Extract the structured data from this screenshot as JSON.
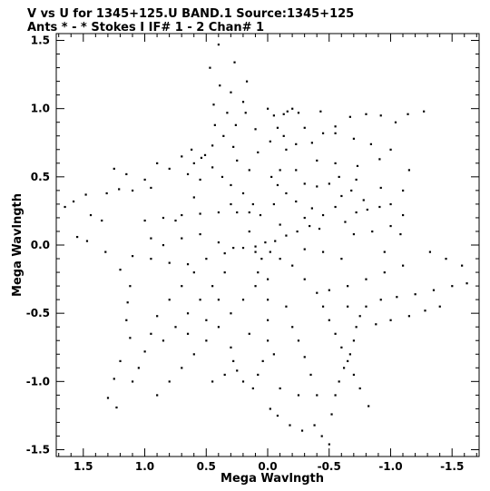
{
  "chart_data": {
    "type": "scatter",
    "title_line1": "V vs U for 1345+125.U BAND.1   Source:1345+125",
    "title_line2": "Ants * - *     Stokes I  IF# 1 - 2  Chan# 1",
    "xlabel": "Mega Wavlngth",
    "ylabel": "Mega Wavlngth",
    "xlim": [
      1.72,
      -1.72
    ],
    "ylim": [
      -1.55,
      1.55
    ],
    "x_ticks": [
      {
        "value": 1.5,
        "label": "1.5"
      },
      {
        "value": 1.0,
        "label": "1.0"
      },
      {
        "value": 0.5,
        "label": "0.5"
      },
      {
        "value": 0.0,
        "label": "0.0"
      },
      {
        "value": -0.5,
        "label": "-0.5"
      },
      {
        "value": -1.0,
        "label": "-1.0"
      },
      {
        "value": -1.5,
        "label": "-1.5"
      }
    ],
    "y_ticks": [
      {
        "value": 1.5,
        "label": "1.5"
      },
      {
        "value": 1.0,
        "label": "1.0"
      },
      {
        "value": 0.5,
        "label": "0.5"
      },
      {
        "value": 0.0,
        "label": "0.0"
      },
      {
        "value": -0.5,
        "label": "-0.5"
      },
      {
        "value": -1.0,
        "label": "-1.0"
      },
      {
        "value": -1.5,
        "label": "-1.5"
      }
    ],
    "grid": false,
    "point_color": "#000000",
    "points": [
      [
        0.4,
        1.47
      ],
      [
        0.27,
        1.34
      ],
      [
        0.47,
        1.3
      ],
      [
        0.39,
        1.17
      ],
      [
        0.17,
        1.2
      ],
      [
        0.3,
        1.12
      ],
      [
        0.2,
        1.05
      ],
      [
        0.44,
        1.03
      ],
      [
        0.33,
        0.97
      ],
      [
        0.18,
        0.97
      ],
      [
        0.43,
        0.88
      ],
      [
        0.26,
        0.88
      ],
      [
        0.36,
        0.8
      ],
      [
        0.45,
        0.73
      ],
      [
        0.62,
        0.7
      ],
      [
        0.28,
        0.72
      ],
      [
        0.51,
        0.66
      ],
      [
        0.54,
        0.64
      ],
      [
        0.45,
        0.57
      ],
      [
        0.37,
        0.5
      ],
      [
        0.3,
        0.44
      ],
      [
        0.2,
        0.38
      ],
      [
        0.12,
        0.3
      ],
      [
        0.06,
        0.22
      ],
      [
        -0.02,
        0.76
      ],
      [
        0.08,
        0.68
      ],
      [
        -0.08,
        0.86
      ],
      [
        -0.13,
        0.96
      ],
      [
        -0.16,
        0.98
      ],
      [
        -0.2,
        1.0
      ],
      [
        -0.25,
        0.97
      ],
      [
        -0.13,
        0.8
      ],
      [
        -0.23,
        0.74
      ],
      [
        -0.15,
        0.7
      ],
      [
        -0.03,
        0.5
      ],
      [
        -0.08,
        0.44
      ],
      [
        -0.15,
        0.38
      ],
      [
        -0.23,
        0.32
      ],
      [
        -0.36,
        0.27
      ],
      [
        -0.45,
        0.22
      ],
      [
        -0.55,
        0.28
      ],
      [
        -0.6,
        0.36
      ],
      [
        -0.68,
        0.4
      ],
      [
        -0.78,
        0.33
      ],
      [
        -0.81,
        0.26
      ],
      [
        -0.72,
        0.24
      ],
      [
        -0.63,
        0.17
      ],
      [
        -0.42,
        0.12
      ],
      [
        -0.34,
        0.14
      ],
      [
        -0.24,
        0.1
      ],
      [
        -0.15,
        0.07
      ],
      [
        -0.06,
        0.03
      ],
      [
        -0.91,
        0.28
      ],
      [
        -1.0,
        0.3
      ],
      [
        -1.1,
        0.22
      ],
      [
        -1.08,
        0.08
      ],
      [
        -1.0,
        0.14
      ],
      [
        -1.15,
        0.55
      ],
      [
        -1.0,
        0.7
      ],
      [
        -0.84,
        0.74
      ],
      [
        -0.7,
        0.78
      ],
      [
        -0.55,
        0.82
      ],
      [
        -0.45,
        0.82
      ],
      [
        -0.36,
        0.75
      ],
      [
        -0.3,
        0.86
      ],
      [
        -0.91,
        0.63
      ],
      [
        -0.73,
        0.58
      ],
      [
        -0.58,
        0.5
      ],
      [
        -0.4,
        0.43
      ],
      [
        -0.43,
        0.98
      ],
      [
        -0.55,
        0.87
      ],
      [
        -0.67,
        0.94
      ],
      [
        -0.8,
        0.96
      ],
      [
        -0.92,
        0.95
      ],
      [
        -1.04,
        0.9
      ],
      [
        -1.14,
        0.96
      ],
      [
        -1.27,
        0.98
      ],
      [
        -1.1,
        0.4
      ],
      [
        -0.92,
        0.42
      ],
      [
        -0.72,
        0.48
      ],
      [
        -0.55,
        0.6
      ],
      [
        -0.4,
        0.62
      ],
      [
        -0.23,
        0.55
      ],
      [
        -0.1,
        0.55
      ],
      [
        0.95,
        0.42
      ],
      [
        1.1,
        0.4
      ],
      [
        1.21,
        0.41
      ],
      [
        1.31,
        0.38
      ],
      [
        1.48,
        0.37
      ],
      [
        1.58,
        0.32
      ],
      [
        1.65,
        0.28
      ],
      [
        1.44,
        0.22
      ],
      [
        1.35,
        0.18
      ],
      [
        1.55,
        0.06
      ],
      [
        1.47,
        0.03
      ],
      [
        1.32,
        -0.05
      ],
      [
        1.1,
        -0.08
      ],
      [
        0.95,
        -0.1
      ],
      [
        0.8,
        -0.13
      ],
      [
        0.65,
        -0.14
      ],
      [
        0.5,
        -0.1
      ],
      [
        0.35,
        -0.06
      ],
      [
        0.2,
        -0.02
      ],
      [
        0.1,
        -0.01
      ],
      [
        1.0,
        0.18
      ],
      [
        0.85,
        0.2
      ],
      [
        0.7,
        0.22
      ],
      [
        0.55,
        0.23
      ],
      [
        0.4,
        0.24
      ],
      [
        0.25,
        0.24
      ],
      [
        0.15,
        0.24
      ],
      [
        0.9,
        0.6
      ],
      [
        0.8,
        0.56
      ],
      [
        0.65,
        0.52
      ],
      [
        0.55,
        0.48
      ],
      [
        1.0,
        0.48
      ],
      [
        1.15,
        0.52
      ],
      [
        1.25,
        0.56
      ],
      [
        0.75,
        0.18
      ],
      [
        0.55,
        0.08
      ],
      [
        0.4,
        0.02
      ],
      [
        0.28,
        -0.02
      ],
      [
        1.2,
        -0.18
      ],
      [
        1.12,
        -0.3
      ],
      [
        1.14,
        -0.42
      ],
      [
        1.15,
        -0.55
      ],
      [
        1.12,
        -0.68
      ],
      [
        1.2,
        -0.85
      ],
      [
        1.25,
        -0.98
      ],
      [
        1.3,
        -1.12
      ],
      [
        1.23,
        -1.19
      ],
      [
        1.1,
        -1.0
      ],
      [
        1.05,
        -0.9
      ],
      [
        1.0,
        -0.78
      ],
      [
        0.95,
        -0.65
      ],
      [
        0.9,
        -0.52
      ],
      [
        0.8,
        -0.4
      ],
      [
        0.7,
        -0.3
      ],
      [
        0.6,
        -0.2
      ],
      [
        0.9,
        -1.1
      ],
      [
        0.8,
        -1.0
      ],
      [
        0.7,
        -0.9
      ],
      [
        0.6,
        -0.8
      ],
      [
        0.5,
        -0.7
      ],
      [
        0.4,
        -0.6
      ],
      [
        0.3,
        -0.5
      ],
      [
        0.2,
        -0.4
      ],
      [
        0.1,
        -0.3
      ],
      [
        0.85,
        -0.7
      ],
      [
        0.75,
        -0.6
      ],
      [
        0.65,
        -0.5
      ],
      [
        0.55,
        -0.4
      ],
      [
        0.45,
        -0.3
      ],
      [
        0.35,
        -0.2
      ],
      [
        0.3,
        -0.75
      ],
      [
        0.28,
        -0.85
      ],
      [
        0.25,
        -0.92
      ],
      [
        0.2,
        -1.0
      ],
      [
        0.12,
        -1.05
      ],
      [
        0.08,
        -0.95
      ],
      [
        0.04,
        -0.85
      ],
      [
        0.0,
        -0.7
      ],
      [
        0.0,
        -0.55
      ],
      [
        0.0,
        -0.4
      ],
      [
        0.0,
        -0.25
      ],
      [
        -0.02,
        -1.2
      ],
      [
        -0.08,
        -1.25
      ],
      [
        -0.18,
        -1.32
      ],
      [
        -0.28,
        -1.36
      ],
      [
        -0.38,
        -1.32
      ],
      [
        -0.44,
        -1.4
      ],
      [
        -0.5,
        -1.46
      ],
      [
        -0.52,
        -1.24
      ],
      [
        -0.55,
        -1.1
      ],
      [
        -0.58,
        -1.0
      ],
      [
        -0.62,
        -0.9
      ],
      [
        -0.67,
        -0.8
      ],
      [
        -0.7,
        -0.7
      ],
      [
        -0.72,
        -0.6
      ],
      [
        -0.75,
        -0.52
      ],
      [
        -0.8,
        -0.45
      ],
      [
        -0.82,
        -1.18
      ],
      [
        -0.75,
        -1.05
      ],
      [
        -0.7,
        -0.95
      ],
      [
        -0.65,
        -0.85
      ],
      [
        -0.6,
        -0.75
      ],
      [
        -0.55,
        -0.65
      ],
      [
        -0.5,
        -0.55
      ],
      [
        -0.45,
        -0.45
      ],
      [
        -0.4,
        -0.35
      ],
      [
        -0.3,
        -0.25
      ],
      [
        -0.2,
        -0.15
      ],
      [
        -0.1,
        -0.1
      ],
      [
        -0.2,
        -0.6
      ],
      [
        -0.25,
        -0.7
      ],
      [
        -0.3,
        -0.82
      ],
      [
        -0.35,
        -0.95
      ],
      [
        -0.4,
        -1.1
      ],
      [
        -0.92,
        -0.4
      ],
      [
        -1.05,
        -0.38
      ],
      [
        -1.2,
        -0.36
      ],
      [
        -1.35,
        -0.33
      ],
      [
        -1.5,
        -0.3
      ],
      [
        -1.62,
        -0.28
      ],
      [
        -1.74,
        -0.27
      ],
      [
        -1.58,
        -0.15
      ],
      [
        -1.45,
        -0.1
      ],
      [
        -1.32,
        -0.05
      ],
      [
        -1.1,
        -0.15
      ],
      [
        -0.95,
        -0.2
      ],
      [
        -0.8,
        -0.25
      ],
      [
        -0.65,
        -0.3
      ],
      [
        -0.5,
        -0.33
      ],
      [
        -0.88,
        -0.58
      ],
      [
        -1.0,
        -0.55
      ],
      [
        -1.15,
        -0.52
      ],
      [
        -1.28,
        -0.48
      ],
      [
        -1.4,
        -0.45
      ],
      [
        -0.6,
        -0.1
      ],
      [
        -0.45,
        -0.05
      ],
      [
        -0.3,
        -0.03
      ],
      [
        0.02,
        0.02
      ],
      [
        -0.02,
        -0.05
      ],
      [
        0.05,
        -0.1
      ],
      [
        0.08,
        -0.2
      ],
      [
        0.1,
        -0.05
      ],
      [
        0.15,
        0.1
      ],
      [
        -0.1,
        0.15
      ],
      [
        -0.05,
        0.3
      ],
      [
        0.3,
        0.3
      ],
      [
        -0.3,
        0.45
      ],
      [
        0.6,
        0.35
      ],
      [
        0.7,
        0.05
      ],
      [
        0.85,
        0.0
      ],
      [
        0.95,
        0.05
      ],
      [
        -0.85,
        0.1
      ],
      [
        -0.7,
        0.08
      ],
      [
        -0.95,
        -0.05
      ],
      [
        0.5,
        -0.55
      ],
      [
        0.65,
        -0.65
      ],
      [
        0.4,
        -0.4
      ],
      [
        -0.65,
        -0.45
      ],
      [
        -0.15,
        -0.45
      ],
      [
        -0.05,
        -0.8
      ],
      [
        0.15,
        -0.65
      ],
      [
        0.45,
        -1.0
      ],
      [
        0.35,
        -0.95
      ],
      [
        -0.1,
        -1.05
      ],
      [
        -0.25,
        -1.1
      ],
      [
        0.7,
        0.65
      ],
      [
        0.6,
        0.6
      ],
      [
        0.1,
        0.85
      ],
      [
        0.0,
        1.0
      ],
      [
        -0.05,
        0.95
      ],
      [
        0.15,
        0.55
      ],
      [
        -0.3,
        0.2
      ],
      [
        -0.5,
        0.45
      ],
      [
        0.25,
        0.62
      ]
    ]
  }
}
